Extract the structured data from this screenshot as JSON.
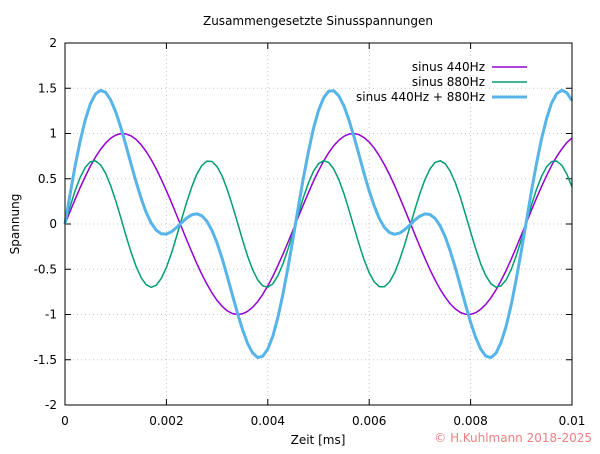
{
  "chart_data": {
    "type": "line",
    "title": "Zusammengesetzte Sinusspannungen",
    "xlabel": "Zeit [ms]",
    "ylabel": "Spannung",
    "xlim": [
      0,
      0.01
    ],
    "ylim": [
      -2,
      2
    ],
    "xticks": [
      "0",
      "0.002",
      "0.004",
      "0.006",
      "0.008",
      "0.01"
    ],
    "xtick_values": [
      0,
      0.002,
      0.004,
      0.006,
      0.008,
      0.01
    ],
    "yticks": [
      "-2",
      "-1.5",
      "-1",
      "-0.5",
      "0",
      "0.5",
      "1",
      "1.5",
      "2"
    ],
    "ytick_values": [
      -2,
      -1.5,
      -1,
      -0.5,
      0,
      0.5,
      1,
      1.5,
      2
    ],
    "grid": true,
    "legend_position": "top-right",
    "samples": 100,
    "series": [
      {
        "name": "sinus 440Hz",
        "color": "#9400d3",
        "components": [
          {
            "amplitude": 1.0,
            "period": 0.004545
          }
        ]
      },
      {
        "name": "sinus 880Hz",
        "color": "#009e73",
        "components": [
          {
            "amplitude": 0.7,
            "period": 0.0022727
          }
        ]
      },
      {
        "name": "sinus 440Hz + 880Hz",
        "color": "#56b4e9",
        "components": [
          {
            "amplitude": 1.0,
            "period": 0.004545
          },
          {
            "amplitude": 0.7,
            "period": 0.0022727
          }
        ]
      }
    ]
  },
  "watermark": "© H.Kuhlmann 2018-2025"
}
